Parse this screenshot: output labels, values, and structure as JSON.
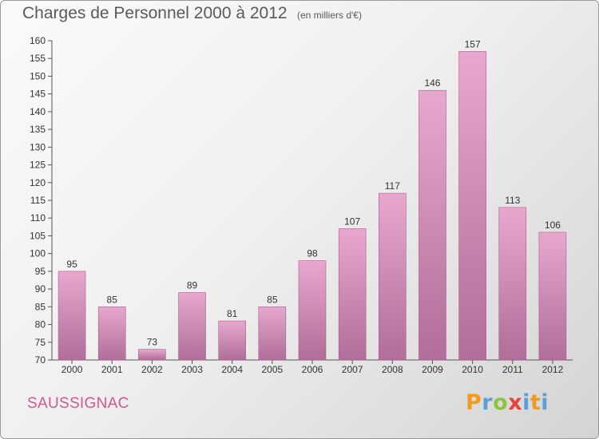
{
  "title": "Charges de Personnel 2000 à 2012",
  "unit_note": "(en milliers d'€)",
  "commune": "SAUSSIGNAC",
  "logo_letters": [
    "P",
    "r",
    "o",
    "x",
    "i",
    "t",
    "i"
  ],
  "colors": {
    "bar_top": "#e8a8ce",
    "bar_bottom": "#b06e98",
    "title": "#5a5a5a",
    "commune": "#d05a8a"
  },
  "chart_data": {
    "type": "bar",
    "title": "Charges de Personnel 2000 à 2012",
    "subtitle": "(en milliers d'€)",
    "xlabel": "",
    "ylabel": "",
    "categories": [
      "2000",
      "2001",
      "2002",
      "2003",
      "2004",
      "2005",
      "2006",
      "2007",
      "2008",
      "2009",
      "2010",
      "2011",
      "2012"
    ],
    "values": [
      95,
      85,
      73,
      89,
      81,
      85,
      98,
      107,
      117,
      146,
      157,
      113,
      106
    ],
    "ylim": [
      70,
      160
    ],
    "yticks": [
      70,
      75,
      80,
      85,
      90,
      95,
      100,
      105,
      110,
      115,
      120,
      125,
      130,
      135,
      140,
      145,
      150,
      155,
      160
    ],
    "grid": false,
    "legend": "none"
  }
}
